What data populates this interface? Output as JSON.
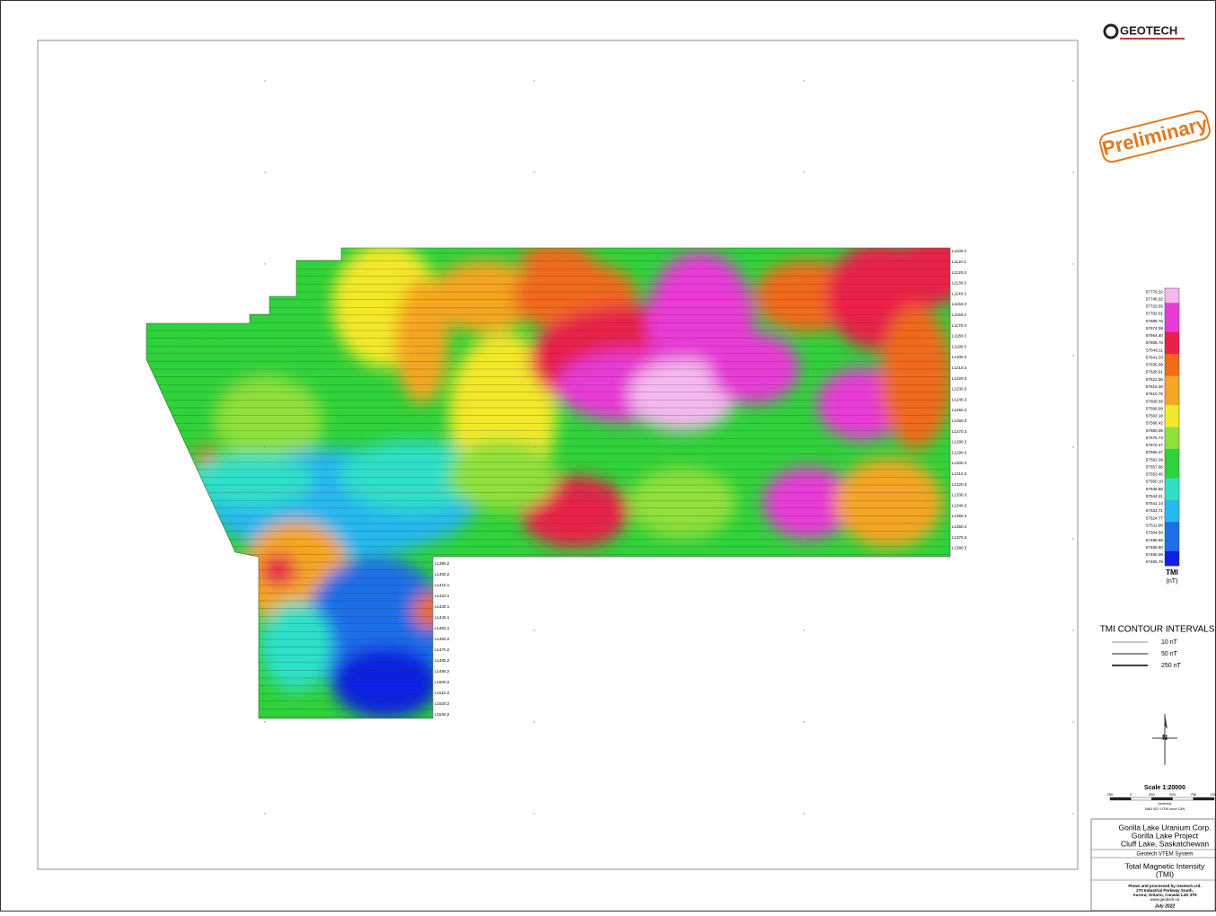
{
  "header": {
    "logo": "GEOTECH",
    "stamp": "Preliminary"
  },
  "legend": {
    "values": [
      "57779.32",
      "57746.02",
      "57720.55",
      "57702.01",
      "57686.76",
      "57674.08",
      "57664.40",
      "57655.76",
      "57648.11",
      "57641.33",
      "57635.09",
      "57628.91",
      "57622.50",
      "57616.36",
      "57610.76",
      "57605.58",
      "57599.99",
      "57593.18",
      "57586.42",
      "57580.06",
      "57575.73",
      "57570.47",
      "57566.37",
      "57562.09",
      "57557.86",
      "57553.40",
      "57550.10",
      "57546.86",
      "57544.21",
      "57541.14",
      "57533.71",
      "57524.77",
      "57511.80",
      "57504.59",
      "57498.55",
      "57489.50",
      "57480.08",
      "57465.79"
    ],
    "title": "TMI",
    "unit": "(nT)"
  },
  "contours": {
    "title": "TMI CONTOUR INTERVALS:",
    "items": [
      "10 nT",
      "50 nT",
      "250 nT"
    ]
  },
  "north": "N",
  "scale": {
    "title": "Scale 1:20000",
    "ticks": [
      "250",
      "0",
      "250",
      "500",
      "750",
      "1000"
    ],
    "unit": "(metres)",
    "projection": "NAD 83 / UTM zone 13N"
  },
  "title_block": {
    "client": "Gorilla Lake Uranium Corp.",
    "project": "Gorilla Lake Project",
    "location": "Cluff Lake, Saskatchewan",
    "system": "Geotech VTEM System",
    "map_title": "Total Magnetic Intensity",
    "map_subtitle": "(TMI)",
    "credit": "Flown and processed by Geotech Ltd.",
    "address1": "270 Industrial Parkway South,",
    "address2": "Aurora, Ontario, Canada L4G 3T9",
    "web": "www.geotech.ca",
    "date": "July 2022"
  },
  "lines": {
    "right": [
      "L1100.3",
      "L1110.3",
      "L1120.3",
      "L1130.3",
      "L1140.3",
      "L1150.3",
      "L1160.3",
      "L1170.3",
      "L1180.3",
      "L1190.3",
      "L1200.3",
      "L1210.3",
      "L1220.3",
      "L1230.3",
      "L1240.3",
      "L1250.3",
      "L1260.3",
      "L1270.3",
      "L1280.3",
      "L1290.3",
      "L1300.3",
      "L1310.3",
      "L1320.3",
      "L1330.3",
      "L1340.3",
      "L1350.3",
      "L1360.3",
      "L1370.3",
      "L1380.3"
    ],
    "lower": [
      "L1390.2",
      "L1400.2",
      "L1410.1",
      "L1420.1",
      "L1430.1",
      "L1440.1",
      "L1450.1",
      "L1460.2",
      "L1470.2",
      "L1480.2",
      "L1490.2",
      "L1500.2",
      "L1510.2",
      "L1520.2",
      "L1530.2"
    ]
  }
}
